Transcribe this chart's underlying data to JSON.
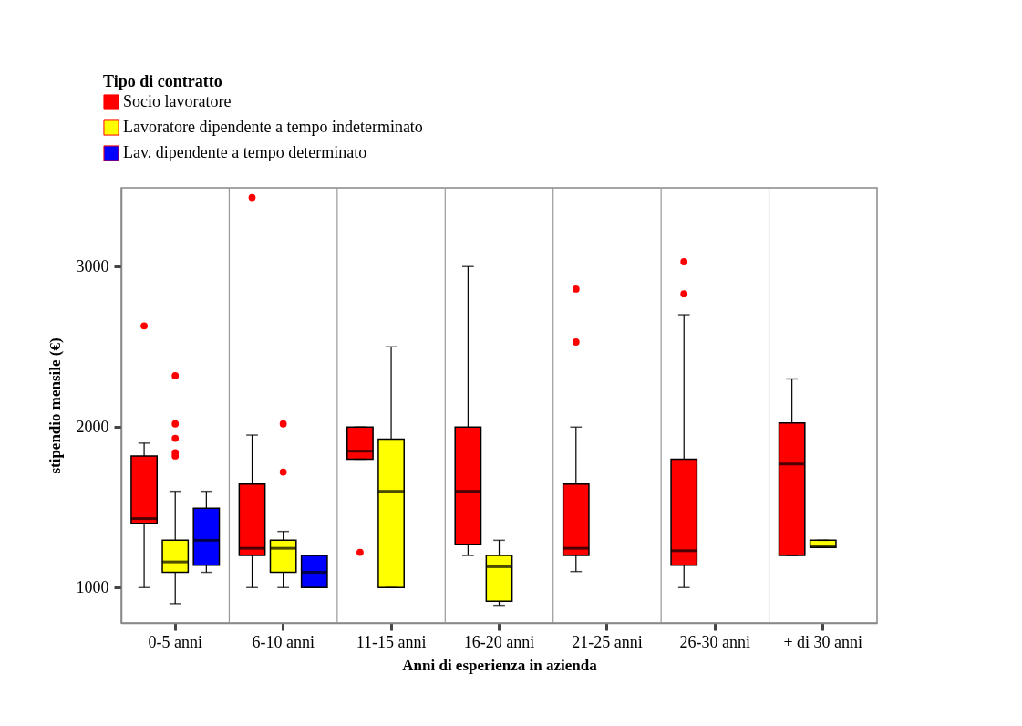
{
  "chart_data": {
    "type": "box",
    "xlabel": "Anni di esperienza in azienda",
    "ylabel": "stipendio mensile (€)",
    "legend_title": "Tipo di contratto",
    "legend": "top left",
    "grid": "x",
    "categories": [
      "0-5 anni",
      "6-10 anni",
      "11-15 anni",
      "16-20 anni",
      "21-25 anni",
      "26-30 anni",
      "+ di 30 anni"
    ],
    "ylim": [
      780,
      3490
    ],
    "yticks": [
      1000,
      2000,
      3000
    ],
    "series": [
      {
        "name": "Socio lavoratore",
        "color": "#ff0000",
        "boxes": [
          {
            "low": 1000,
            "q1": 1400,
            "median": 1430,
            "q3": 1820,
            "high": 1900,
            "outliers": [
              2630
            ]
          },
          {
            "low": 1000,
            "q1": 1200,
            "median": 1245,
            "q3": 1645,
            "high": 1950,
            "outliers": [
              3430
            ]
          },
          {
            "low": 1800,
            "q1": 1800,
            "median": 1850,
            "q3": 2000,
            "high": 2000,
            "outliers": [
              1220
            ]
          },
          {
            "low": 1200,
            "q1": 1270,
            "median": 1600,
            "q3": 2000,
            "high": 3000
          },
          {
            "low": 1100,
            "q1": 1200,
            "median": 1245,
            "q3": 1645,
            "high": 2000,
            "outliers": [
              2860,
              2530
            ]
          },
          {
            "low": 1000,
            "q1": 1140,
            "median": 1230,
            "q3": 1800,
            "high": 2700,
            "outliers": [
              3030,
              2830
            ]
          },
          {
            "low": 1200,
            "q1": 1200,
            "median": 1770,
            "q3": 2025,
            "high": 2300
          }
        ]
      },
      {
        "name": "Lavoratore dipendente a tempo indeterminato",
        "color": "#ffff00",
        "boxes": [
          {
            "low": 900,
            "q1": 1095,
            "median": 1160,
            "q3": 1295,
            "high": 1600,
            "outliers": [
              2320,
              2020,
              1930,
              1840,
              1820
            ]
          },
          {
            "low": 1000,
            "q1": 1095,
            "median": 1245,
            "q3": 1295,
            "high": 1350,
            "outliers": [
              2020,
              1720
            ]
          },
          {
            "low": 1000,
            "q1": 1000,
            "median": 1600,
            "q3": 1925,
            "high": 2500
          },
          {
            "low": 890,
            "q1": 915,
            "median": 1130,
            "q3": 1200,
            "high": 1295
          },
          null,
          null,
          {
            "low": 1250,
            "q1": 1250,
            "median": 1260,
            "q3": 1295,
            "high": 1295
          }
        ]
      },
      {
        "name": "Lav. dipendente a tempo determinato",
        "color": "#0000ff",
        "boxes": [
          {
            "low": 1095,
            "q1": 1140,
            "median": 1295,
            "q3": 1495,
            "high": 1600
          },
          {
            "low": 1000,
            "q1": 1000,
            "median": 1095,
            "q3": 1200,
            "high": 1200
          },
          null,
          null,
          null,
          null,
          null
        ]
      }
    ]
  }
}
